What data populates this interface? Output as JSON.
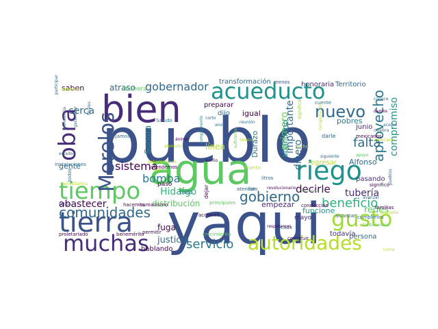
{
  "words": [
    {
      "text": "pueblo",
      "color": "#3b528b"
    },
    {
      "text": "yaqui",
      "color": "#3b528b"
    },
    {
      "text": "agua",
      "color": "#5ec962"
    },
    {
      "text": "bien",
      "color": "#472c7a"
    },
    {
      "text": "tiempo",
      "color": "#5ec962"
    },
    {
      "text": "tierra",
      "color": "#3b528b"
    },
    {
      "text": "acueducto",
      "color": "#21918c"
    },
    {
      "text": "muchas",
      "color": "#472c7a"
    },
    {
      "text": "obra",
      "color": "#472c7a"
    },
    {
      "text": "Morelos",
      "color": "#3b528b"
    },
    {
      "text": "riego",
      "color": "#21918c"
    },
    {
      "text": "nuevo",
      "color": "#31688e"
    },
    {
      "text": "gusto",
      "color": "#a0da39"
    },
    {
      "text": "autoridades",
      "color": "#b5de2b"
    },
    {
      "text": "aprovecho",
      "color": "#2a788e"
    },
    {
      "text": "comunidades",
      "color": "#31688e"
    },
    {
      "text": "gobierno",
      "color": "#31688e"
    },
    {
      "text": "beneficio",
      "color": "#2db27d"
    },
    {
      "text": "servicio",
      "color": "#2a788e"
    },
    {
      "text": "falta",
      "color": "#31688e"
    },
    {
      "text": "sistema",
      "color": "#440154"
    },
    {
      "text": "bomba",
      "color": "#2a788e"
    },
    {
      "text": "gobernador",
      "color": "#31688e"
    },
    {
      "text": "compromiso",
      "color": "#21918c"
    },
    {
      "text": "decirle",
      "color": "#440154"
    },
    {
      "text": "Hidalgo",
      "color": "#35b779"
    },
    {
      "text": "abastecer",
      "color": "#440154"
    },
    {
      "text": "cerca",
      "color": "#31688e"
    },
    {
      "text": "importante",
      "color": "#31688e"
    },
    {
      "text": "dinero",
      "color": "#31688e"
    },
    {
      "text": "primero",
      "color": "#6ece58"
    },
    {
      "text": "tubería",
      "color": "#472c7a"
    },
    {
      "text": "redes",
      "color": "#5ec962"
    },
    {
      "text": "justicia",
      "color": "#31688e"
    },
    {
      "text": "fuga",
      "color": "#440154"
    },
    {
      "text": "distribución",
      "color": "#5ec962"
    },
    {
      "text": "línea",
      "color": "#b5de2b"
    },
    {
      "text": "Sonora",
      "color": "#21918c"
    },
    {
      "text": "atraso",
      "color": "#31688e"
    },
    {
      "text": "saben",
      "color": "#440154"
    },
    {
      "text": "gente",
      "color": "#31688e"
    },
    {
      "text": "empezar",
      "color": "#482878"
    },
    {
      "text": "funcione",
      "color": "#21918c"
    },
    {
      "text": "Alfonso",
      "color": "#31688e"
    },
    {
      "text": "pobres",
      "color": "#2a788e"
    },
    {
      "text": "Durazo",
      "color": "#2a788e"
    },
    {
      "text": "abandono",
      "color": "#21918c"
    },
    {
      "text": "igual",
      "color": "#440154"
    },
    {
      "text": "preparar",
      "color": "#440154"
    },
    {
      "text": "hablando",
      "color": "#440154"
    },
    {
      "text": "todavía",
      "color": "#472c7a"
    },
    {
      "text": "persona",
      "color": "#31688e"
    },
    {
      "text": "pasando",
      "color": "#472c7a"
    },
    {
      "text": "regresar",
      "color": "#b5de2b"
    },
    {
      "text": "Territorio",
      "color": "#31688e"
    },
    {
      "text": "honoraria",
      "color": "#472c7a"
    },
    {
      "text": "transformación",
      "color": "#31688e"
    },
    {
      "text": "dijo",
      "color": "#31688e"
    },
    {
      "text": "junio",
      "color": "#482878"
    },
    {
      "text": "mayo",
      "color": "#482878"
    },
    {
      "text": "paso",
      "color": "#440154"
    },
    {
      "text": "manera",
      "color": "#5ec962"
    },
    {
      "text": "menos",
      "color": "#3b528b"
    },
    {
      "text": "Saludo",
      "color": "#2a788e"
    },
    {
      "text": "trato",
      "color": "#31688e"
    },
    {
      "text": "dejar",
      "color": "#440154"
    },
    {
      "text": "listo",
      "color": "#31688e"
    },
    {
      "text": "significa",
      "color": "#a0da39"
    },
    {
      "text": "cuente",
      "color": "#2a788e"
    },
    {
      "text": "darle",
      "color": "#31688e"
    },
    {
      "text": "dicho",
      "color": "#b5de2b"
    },
    {
      "text": "mexicanos",
      "color": "#440154"
    },
    {
      "text": "alcanzar",
      "color": "#31688e"
    },
    {
      "text": "cumplimos",
      "color": "#31688e"
    },
    {
      "text": "significó",
      "color": "#440154"
    },
    {
      "text": "atendemos",
      "color": "#440154"
    },
    {
      "text": "Puerto",
      "color": "#b5de2b"
    },
    {
      "text": "litros",
      "color": "#31688e"
    },
    {
      "text": "atender",
      "color": "#31688e"
    },
    {
      "text": "humanismo",
      "color": "#440154"
    },
    {
      "text": "hacemos",
      "color": "#440154"
    },
    {
      "text": "principales",
      "color": "#5ec962"
    },
    {
      "text": "conducción",
      "color": "#440154"
    },
    {
      "text": "acciones",
      "color": "#440154"
    },
    {
      "text": "cada",
      "color": "#3b528b"
    },
    {
      "text": "construir",
      "color": "#440154"
    },
    {
      "text": "respetamos",
      "color": "#440154"
    },
    {
      "text": "crecimiento",
      "color": "#5ec962"
    },
    {
      "text": "permitir",
      "color": "#440154"
    },
    {
      "text": "proletariado",
      "color": "#440154"
    },
    {
      "text": "benemérito",
      "color": "#440154"
    },
    {
      "text": "instalaciones",
      "color": "#31688e"
    },
    {
      "text": "necesitamos",
      "color": "#b5de2b"
    },
    {
      "text": "todos",
      "color": "#31688e"
    },
    {
      "text": "Felipe",
      "color": "#31688e"
    },
    {
      "text": "dejamos",
      "color": "#31688e"
    },
    {
      "text": "complemento",
      "color": "#21918c"
    },
    {
      "text": "suficiente",
      "color": "#6ece58"
    },
    {
      "text": "corto",
      "color": "#31688e"
    },
    {
      "text": "anos",
      "color": "#31688e"
    },
    {
      "text": "conoce",
      "color": "#31688e"
    },
    {
      "text": "damos",
      "color": "#440154"
    },
    {
      "text": "celebra",
      "color": "#31688e"
    },
    {
      "text": "familias",
      "color": "#440154"
    },
    {
      "text": "tradicionales",
      "color": "#5ec962"
    },
    {
      "text": "revolucionario",
      "color": "#440154"
    },
    {
      "text": "noche",
      "color": "#b5de2b"
    },
    {
      "text": "pequeño",
      "color": "#b5de2b"
    },
    {
      "text": "Loma",
      "color": "#b5de2b"
    },
    {
      "text": "finales",
      "color": "#31688e"
    },
    {
      "text": "recuperación",
      "color": "#b5de2b"
    },
    {
      "text": "gobernadores",
      "color": "#b5de2b"
    },
    {
      "text": "participar",
      "color": "#31688e"
    },
    {
      "text": "defender",
      "color": "#b5de2b"
    },
    {
      "text": "preferencia",
      "color": "#31688e"
    },
    {
      "text": "garantizar",
      "color": "#31688e"
    },
    {
      "text": "acerca",
      "color": "#31688e"
    },
    {
      "text": "atención",
      "color": "#b5de2b"
    },
    {
      "text": "siempre",
      "color": "#5ec962"
    },
    {
      "text": "mexicano",
      "color": "#b5de2b"
    },
    {
      "text": "estados",
      "color": "#31688e"
    },
    {
      "text": "Sinaloa",
      "color": "#b5de2b"
    },
    {
      "text": "apoyo",
      "color": "#5ec962"
    },
    {
      "text": "pueblos",
      "color": "#31688e"
    },
    {
      "text": "sueño",
      "color": "#440154"
    },
    {
      "text": "ánimo",
      "color": "#440154"
    },
    {
      "text": "reunión",
      "color": "#31688e"
    },
    {
      "text": "siguiente",
      "color": "#31688e"
    },
    {
      "text": "avanzar",
      "color": "#31688e"
    }
  ]
}
